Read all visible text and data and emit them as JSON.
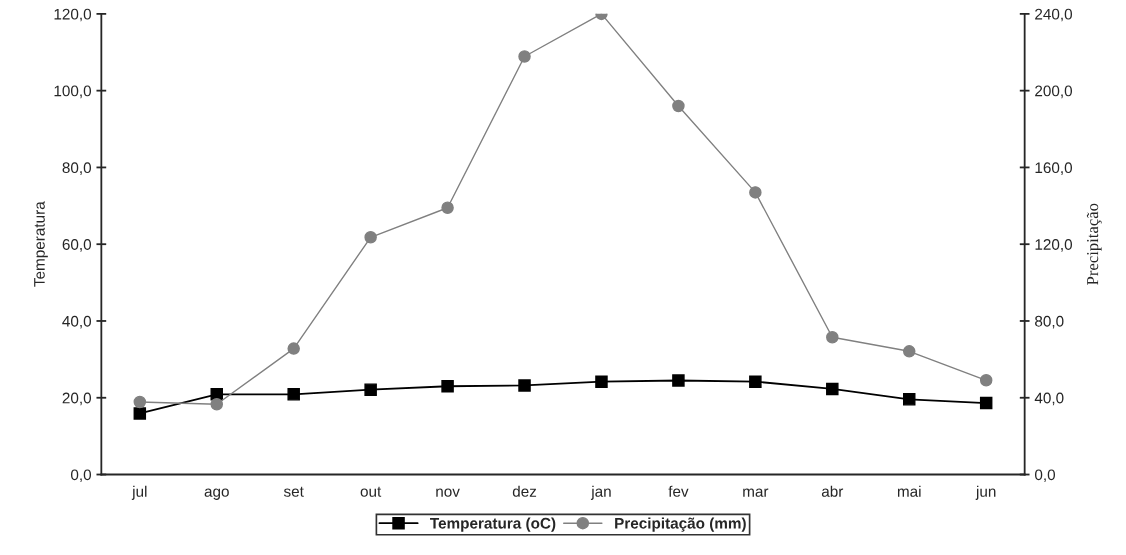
{
  "chart_data": {
    "type": "line",
    "categories": [
      "jul",
      "ago",
      "set",
      "out",
      "nov",
      "dez",
      "jan",
      "fev",
      "mar",
      "abr",
      "mai",
      "jun"
    ],
    "series": [
      {
        "name": "Temperatura (oC)",
        "color": "#000000",
        "marker": "square",
        "values": [
          15.9,
          20.9,
          20.9,
          22.1,
          23.0,
          23.2,
          24.2,
          24.5,
          24.2,
          22.3,
          19.6,
          18.6
        ]
      },
      {
        "name": "Precipitação (mm)",
        "color": "#808080",
        "marker": "circle",
        "axis": "y2",
        "values": [
          37.8,
          36.6,
          65.6,
          123.6,
          139,
          217.8,
          240,
          192,
          147,
          71.5,
          64.2,
          49.1
        ]
      }
    ],
    "ylabel": "Temperatura",
    "y2label": "Precipitação",
    "ylim": [
      0,
      120
    ],
    "yticks": [
      {
        "value": 0,
        "label": "0,0"
      },
      {
        "value": 20,
        "label": "20,0"
      },
      {
        "value": 40,
        "label": "40,0"
      },
      {
        "value": 60,
        "label": "60,0"
      },
      {
        "value": 80,
        "label": "80,0"
      },
      {
        "value": 100,
        "label": "100,0"
      },
      {
        "value": 120,
        "label": "120,0"
      }
    ],
    "y2lim": [
      0,
      240
    ],
    "y2ticks": [
      {
        "value": 0,
        "label": "0,0"
      },
      {
        "value": 40,
        "label": "40,0"
      },
      {
        "value": 80,
        "label": "80,0"
      },
      {
        "value": 120,
        "label": "120,0"
      },
      {
        "value": 160,
        "label": "160,0"
      },
      {
        "value": 200,
        "label": "200,0"
      },
      {
        "value": 240,
        "label": "240,0"
      }
    ],
    "grid": false,
    "legend": "bottom",
    "line_style": "solid"
  }
}
